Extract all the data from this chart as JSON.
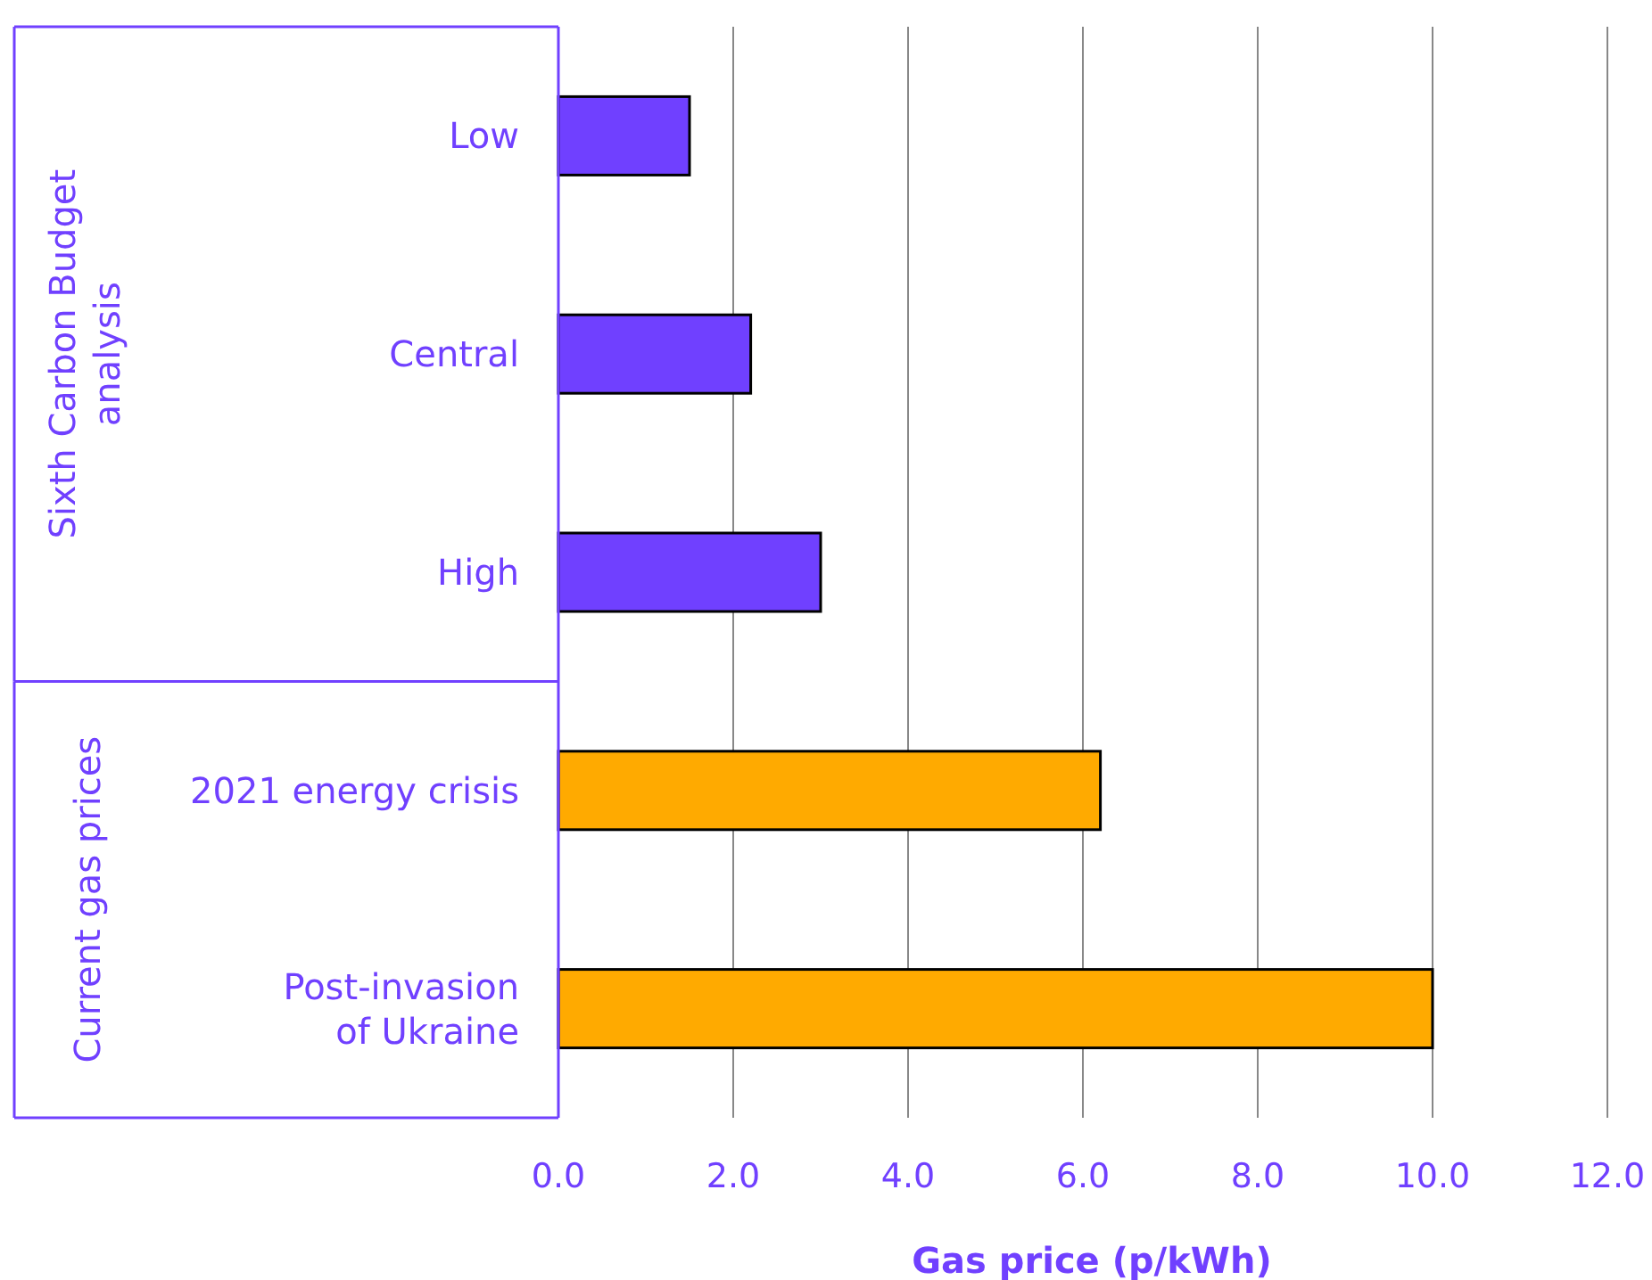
{
  "chart_data": {
    "type": "bar",
    "orientation": "horizontal",
    "categories": [
      "Low",
      "Central",
      "High",
      "2021 energy crisis",
      "Post-invasion of Ukraine"
    ],
    "values": [
      1.5,
      2.2,
      3.0,
      6.2,
      10.0
    ],
    "colors": [
      "#7040ff",
      "#7040ff",
      "#7040ff",
      "#ffaa00",
      "#ffaa00"
    ],
    "xlabel": "Gas price (p/kWh)",
    "xlim": [
      0,
      12
    ],
    "xticks": [
      {
        "value": 0,
        "label": "0.0"
      },
      {
        "value": 2,
        "label": "2.0"
      },
      {
        "value": 4,
        "label": "4.0"
      },
      {
        "value": 6,
        "label": "6.0"
      },
      {
        "value": 8,
        "label": "8.0"
      },
      {
        "value": 10,
        "label": "10.0"
      },
      {
        "value": 12,
        "label": "12.0"
      }
    ],
    "grid": "x",
    "annotations": [
      "Sixth Carbon Budget analysis",
      "Current gas prices"
    ]
  }
}
